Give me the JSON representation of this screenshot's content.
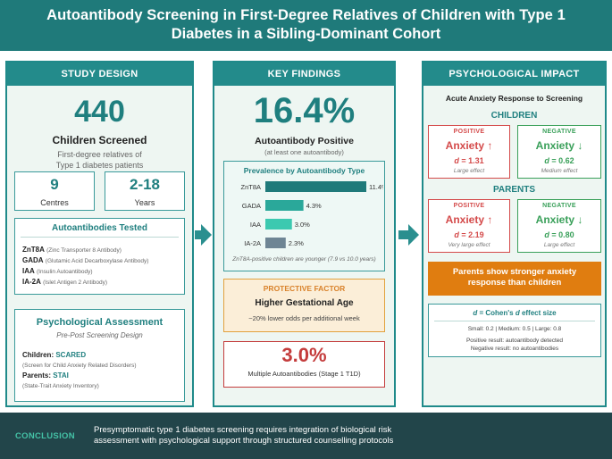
{
  "header": {
    "title_line1": "Autoantibody Screening in First-Degree Relatives of Children with Type 1",
    "title_line2": "Diabetes in a Sibling-Dominant Cohort"
  },
  "study_design": {
    "heading": "STUDY DESIGN",
    "children_count": "440",
    "children_label": "Children Screened",
    "children_sub_line1": "First-degree relatives of",
    "children_sub_line2": "Type 1 diabetes patients",
    "centres_value": "9",
    "centres_label": "Centres",
    "age_value": "2-18",
    "age_label": "Years",
    "autoantibodies": {
      "title": "Autoantibodies Tested",
      "items": [
        {
          "abbr": "ZnT8A",
          "full": "(Zinc Transporter 8 Antibody)"
        },
        {
          "abbr": "GADA",
          "full": "(Glutamic Acid Decarboxylase Antibody)"
        },
        {
          "abbr": "IAA",
          "full": "(Insulin Autoantibody)"
        },
        {
          "abbr": "IA-2A",
          "full": "(Islet Antigen 2 Antibody)"
        }
      ]
    },
    "psych": {
      "title": "Psychological Assessment",
      "subtitle": "Pre-Post Screening Design",
      "children_label": "Children:",
      "children_tool": "SCARED",
      "children_tool_full": "(Screen for Child Anxiety Related Disorders)",
      "parents_label": "Parents:",
      "parents_tool": "STAI",
      "parents_tool_full": "(State-Trait Anxiety Inventory)"
    }
  },
  "key_findings": {
    "heading": "KEY FINDINGS",
    "positive_pct": "16.4%",
    "positive_label": "Autoantibody Positive",
    "positive_sub": "(at least one autoantibody)",
    "chart_title": "Prevalence by Autoantibody Type",
    "chart_note": "ZnT8A-positive children are younger (7.9 vs 10.0 years)",
    "protective": {
      "title": "PROTECTIVE FACTOR",
      "factor": "Higher Gestational Age",
      "detail": "~20% lower odds per additional week"
    },
    "multiple": {
      "pct": "3.0%",
      "label": "Multiple Autoantibodies (Stage 1 T1D)"
    }
  },
  "chart_data": {
    "type": "bar",
    "orientation": "horizontal",
    "title": "Prevalence by Autoantibody Type",
    "categories": [
      "ZnT8A",
      "GADA",
      "IAA",
      "IA-2A"
    ],
    "values": [
      11.4,
      4.3,
      3.0,
      2.3
    ],
    "value_labels": [
      "11.4%",
      "4.3%",
      "3.0%",
      "2.3%"
    ],
    "xlim": [
      0,
      11.4
    ],
    "colors": [
      "#1f7a7a",
      "#2aa89a",
      "#3cc9b0",
      "#6e8594"
    ]
  },
  "psych_impact": {
    "heading": "PSYCHOLOGICAL IMPACT",
    "subtitle": "Acute Anxiety Response to Screening",
    "children_heading": "CHILDREN",
    "parents_heading": "PARENTS",
    "children": {
      "pos_title": "POSITIVE",
      "pos_anx": "Anxiety ↑",
      "pos_d_prefix": "d",
      "pos_d_val": " = 1.31",
      "pos_eff": "Large effect",
      "neg_title": "NEGATIVE",
      "neg_anx": "Anxiety ↓",
      "neg_d_prefix": "d",
      "neg_d_val": " = 0.62",
      "neg_eff": "Medium effect"
    },
    "parents": {
      "pos_title": "POSITIVE",
      "pos_anx": "Anxiety ↑",
      "pos_d_prefix": "d",
      "pos_d_val": " = 2.19",
      "pos_eff": "Very large effect",
      "neg_title": "NEGATIVE",
      "neg_anx": "Anxiety ↓",
      "neg_d_prefix": "d",
      "neg_d_val": " = 0.80",
      "neg_eff": "Large effect"
    },
    "callout_line1": "Parents show stronger anxiety",
    "callout_line2": "response than children",
    "effect": {
      "title_d": "d",
      "title_rest": " = Cohen's ",
      "title_d2": "d",
      "title_end": " effect size",
      "scale": "Small: 0.2 | Medium: 0.5 | Large: 0.8",
      "pos_note": "Positive result: autoantibody detected",
      "neg_note": "Negative result: no autoantibodies"
    },
    "colors": {
      "positive": "#d44a4a",
      "negative": "#3aa05a",
      "callout": "#e07d10"
    }
  },
  "footer": {
    "label": "CONCLUSION",
    "text_line1": "Presymptomatic type 1 diabetes screening requires integration of biological risk",
    "text_line2": "assessment with psychological support through structured counselling protocols"
  }
}
